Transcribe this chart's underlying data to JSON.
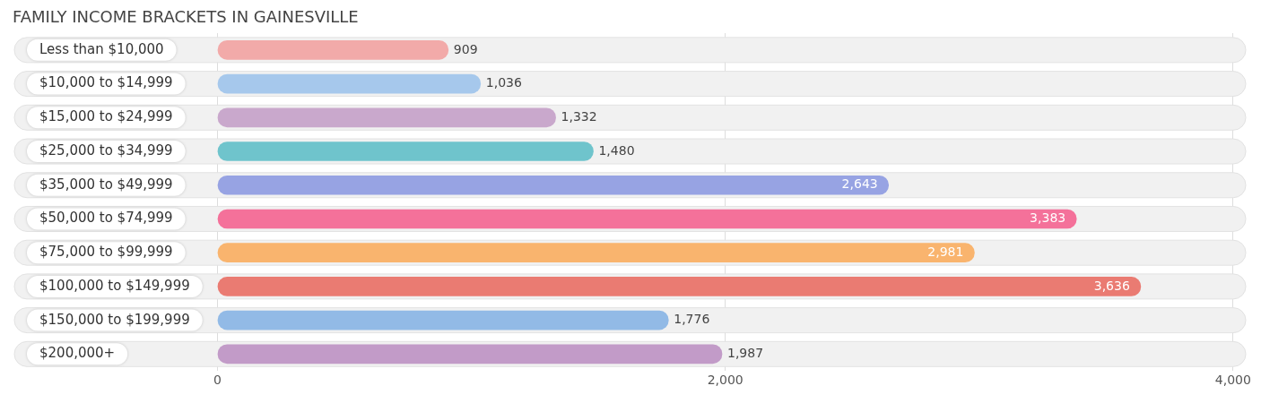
{
  "chart_data": {
    "type": "bar",
    "orientation": "horizontal",
    "title": "FAMILY INCOME BRACKETS IN GAINESVILLE",
    "categories": [
      "Less than $10,000",
      "$10,000 to $14,999",
      "$15,000 to $24,999",
      "$25,000 to $34,999",
      "$35,000 to $49,999",
      "$50,000 to $74,999",
      "$75,000 to $99,999",
      "$100,000 to $149,999",
      "$150,000 to $199,999",
      "$200,000+"
    ],
    "values": [
      909,
      1036,
      1332,
      1480,
      2643,
      3383,
      2981,
      3636,
      1776,
      1987
    ],
    "colors": [
      "#f2aaa9",
      "#a6c8ec",
      "#c9a8cc",
      "#6fc4cc",
      "#97a3e3",
      "#f4719a",
      "#f9b46e",
      "#ea7b72",
      "#92bae6",
      "#c29bc8"
    ],
    "value_labels": [
      "909",
      "1,036",
      "1,332",
      "1,480",
      "2,643",
      "3,383",
      "2,981",
      "3,636",
      "1,776",
      "1,987"
    ],
    "xlim": [
      -800,
      4050
    ],
    "xticks": [
      0,
      {
        "value": 2000,
        "label": "2,000"
      },
      {
        "value": 4000,
        "label": "4,000"
      }
    ],
    "grid": "x",
    "legend": false
  }
}
